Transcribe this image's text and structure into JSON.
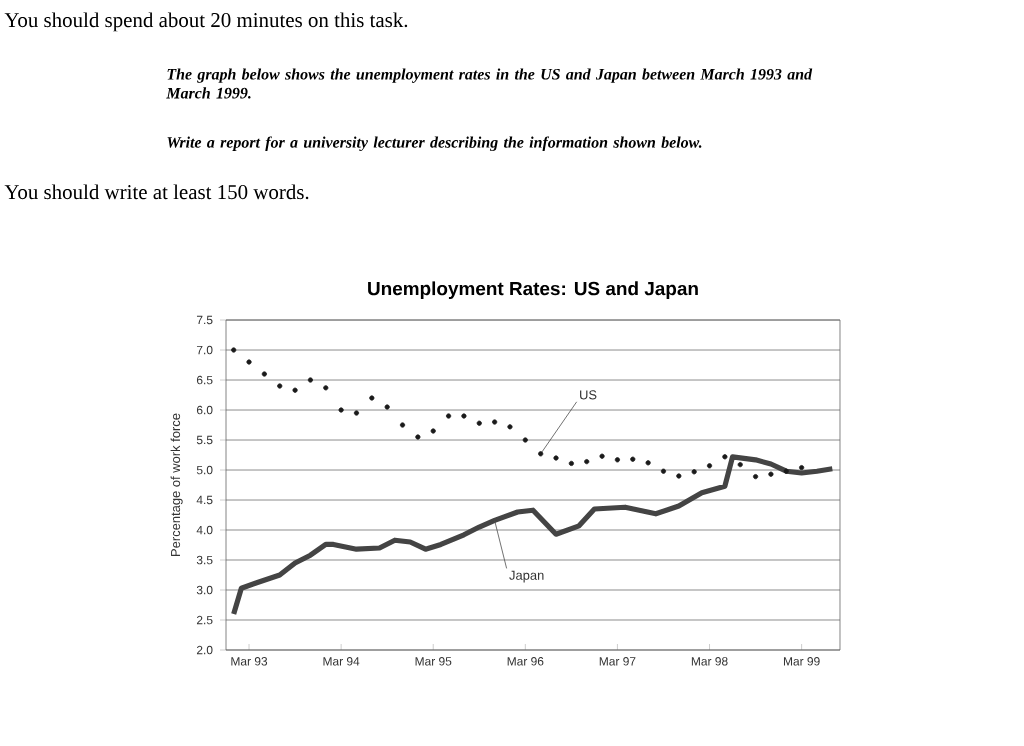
{
  "chart_data": {
    "type": "line",
    "title": "Unemployment Rates: US and Japan",
    "ylabel": "Percentage of work force",
    "annotations": [
      "You should spend about 20 minutes on this task.",
      "The graph below shows the unemployment rates in the US and Japan between March 1993 and March 1999.",
      "Write a report for a university lecturer describing the information shown below.",
      "You should write at least 150 words."
    ],
    "xlim": [
      "1992-12",
      "1999-08"
    ],
    "xticks": [
      {
        "value": "1993-03",
        "label": "Mar 93"
      },
      {
        "value": "1994-03",
        "label": "Mar 94"
      },
      {
        "value": "1995-03",
        "label": "Mar 95"
      },
      {
        "value": "1996-03",
        "label": "Mar 96"
      },
      {
        "value": "1997-03",
        "label": "Mar 97"
      },
      {
        "value": "1998-03",
        "label": "Mar 98"
      },
      {
        "value": "1999-03",
        "label": "Mar 99"
      }
    ],
    "ylim": [
      2.0,
      7.5
    ],
    "yticks": [
      {
        "value": 2.0,
        "label": "2.0"
      },
      {
        "value": 2.5,
        "label": "2.5"
      },
      {
        "value": 3.0,
        "label": "3.0"
      },
      {
        "value": 3.5,
        "label": "3.5"
      },
      {
        "value": 4.0,
        "label": "4.0"
      },
      {
        "value": 4.5,
        "label": "4.5"
      },
      {
        "value": 5.0,
        "label": "5.0"
      },
      {
        "value": 5.5,
        "label": "5.5"
      },
      {
        "value": 6.0,
        "label": "6.0"
      },
      {
        "value": 6.5,
        "label": "6.5"
      },
      {
        "value": 7.0,
        "label": "7.0"
      },
      {
        "value": 7.5,
        "label": "7.5"
      }
    ],
    "grid": "y",
    "series": [
      {
        "name": "US",
        "type": "scatter",
        "marker": "circle",
        "color": "#1a1a1a",
        "x": [
          "1993-01",
          "1993-03",
          "1993-05",
          "1993-07",
          "1993-09",
          "1993-11",
          "1994-01",
          "1994-03",
          "1994-05",
          "1994-07",
          "1994-09",
          "1994-11",
          "1995-01",
          "1995-03",
          "1995-05",
          "1995-07",
          "1995-09",
          "1995-11",
          "1996-01",
          "1996-03",
          "1996-05",
          "1996-07",
          "1996-09",
          "1996-11",
          "1997-01",
          "1997-03",
          "1997-05",
          "1997-07",
          "1997-09",
          "1997-11",
          "1998-01",
          "1998-03",
          "1998-05",
          "1998-07",
          "1998-09",
          "1998-11",
          "1999-01",
          "1999-03"
        ],
        "values": [
          7.0,
          6.8,
          6.6,
          6.4,
          6.33,
          6.5,
          6.37,
          6.0,
          5.95,
          6.2,
          6.05,
          5.75,
          5.55,
          5.65,
          5.9,
          5.9,
          5.78,
          5.8,
          5.72,
          5.5,
          5.27,
          5.2,
          5.11,
          5.14,
          5.23,
          5.17,
          5.18,
          5.12,
          4.98,
          4.9,
          4.97,
          5.07,
          5.22,
          5.09,
          4.89,
          4.93,
          4.98,
          5.04
        ]
      },
      {
        "name": "Japan",
        "type": "line",
        "marker": "none",
        "color": "#444444",
        "x": [
          "1993-01",
          "1993-02",
          "1993-04",
          "1993-07",
          "1993-09",
          "1993-11",
          "1994-01",
          "1994-02",
          "1994-05",
          "1994-08",
          "1994-10",
          "1994-12",
          "1995-02",
          "1995-04",
          "1995-07",
          "1995-09",
          "1995-11",
          "1996-02",
          "1996-04",
          "1996-07",
          "1996-10",
          "1996-12",
          "1997-04",
          "1997-08",
          "1997-11",
          "1998-02",
          "1998-05",
          "1998-06",
          "1998-09",
          "1998-11",
          "1999-01",
          "1999-03",
          "1999-05",
          "1999-07"
        ],
        "values": [
          2.6,
          3.03,
          3.12,
          3.25,
          3.45,
          3.58,
          3.76,
          3.76,
          3.68,
          3.7,
          3.83,
          3.8,
          3.68,
          3.76,
          3.92,
          4.05,
          4.16,
          4.3,
          4.33,
          3.93,
          4.07,
          4.35,
          4.38,
          4.27,
          4.4,
          4.62,
          4.73,
          5.22,
          5.17,
          5.1,
          4.98,
          4.95,
          4.98,
          5.02
        ]
      }
    ]
  }
}
